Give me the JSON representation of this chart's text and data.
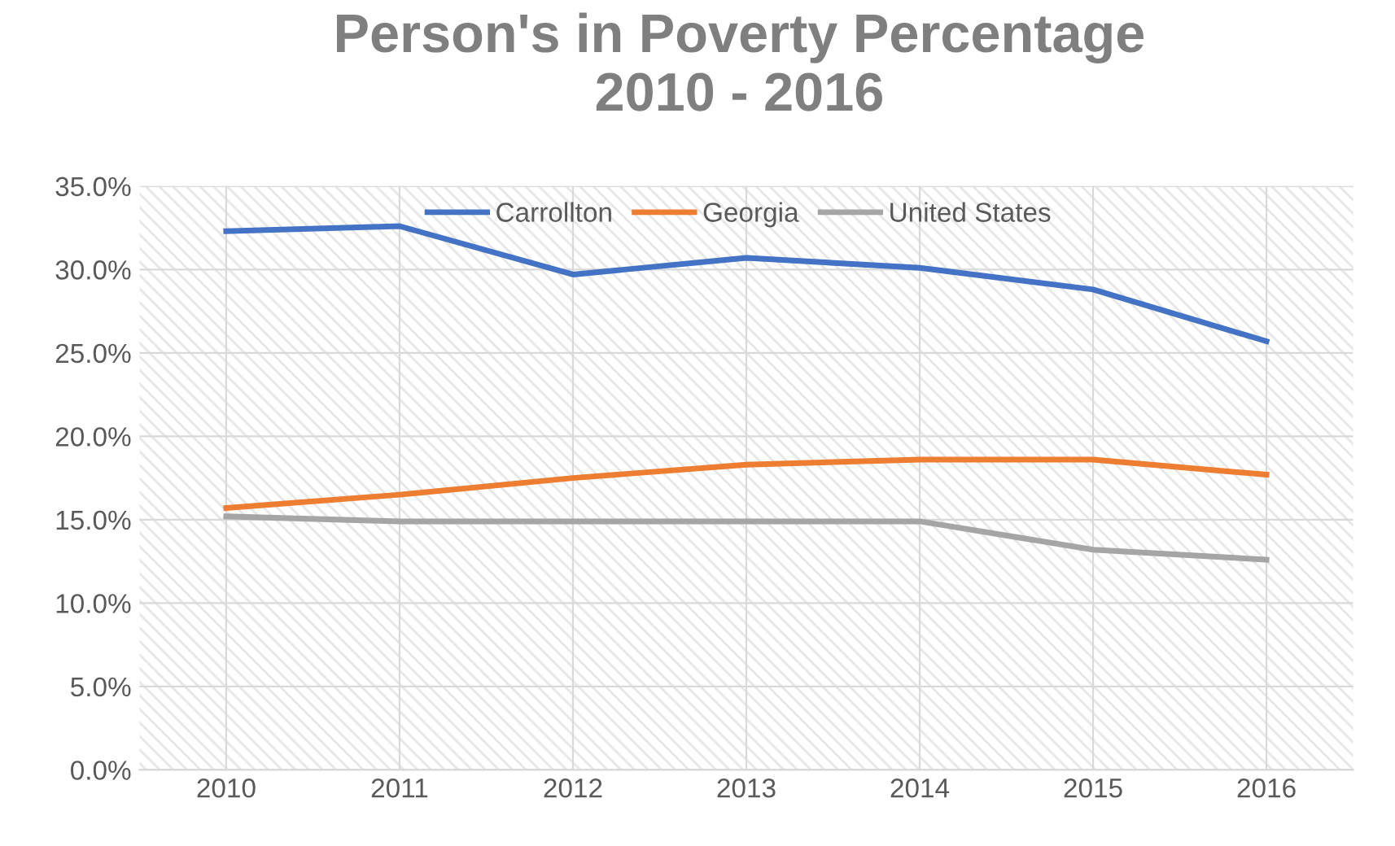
{
  "chart_data": {
    "type": "line",
    "title": "Person's in Poverty Percentage\n2010 - 2016",
    "categories": [
      "2010",
      "2011",
      "2012",
      "2013",
      "2014",
      "2015",
      "2016"
    ],
    "series": [
      {
        "name": "Carrollton",
        "color": "#4472c4",
        "values": [
          32.3,
          32.6,
          29.7,
          30.7,
          30.1,
          28.8,
          25.7
        ]
      },
      {
        "name": "Georgia",
        "color": "#ed7d31",
        "values": [
          15.7,
          16.5,
          17.5,
          18.3,
          18.6,
          18.6,
          17.7
        ]
      },
      {
        "name": "United States",
        "color": "#a5a5a5",
        "values": [
          15.2,
          14.9,
          14.9,
          14.9,
          14.9,
          13.2,
          12.6
        ]
      }
    ],
    "ylim": [
      0,
      35
    ],
    "yticks": [
      {
        "value": 0,
        "label": "0.0%"
      },
      {
        "value": 5,
        "label": "5.0%"
      },
      {
        "value": 10,
        "label": "10.0%"
      },
      {
        "value": 15,
        "label": "15.0%"
      },
      {
        "value": 20,
        "label": "20.0%"
      },
      {
        "value": 25,
        "label": "25.0%"
      },
      {
        "value": 30,
        "label": "30.0%"
      },
      {
        "value": 35,
        "label": "35.0%"
      }
    ],
    "grid": true,
    "legend": "top",
    "marker": "none",
    "line_style": "solid"
  }
}
